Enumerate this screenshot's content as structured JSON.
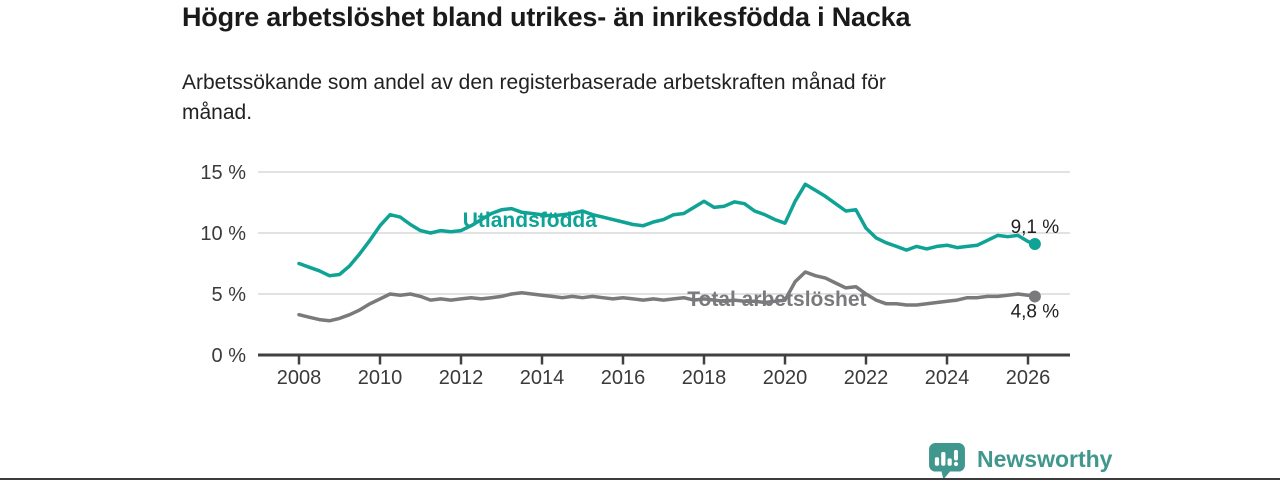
{
  "header": {
    "title": "Högre arbetslöshet bland utrikes- än inrikesfödda i Nacka",
    "subtitle_lines": [
      "Arbetssökande som andel av den registerbaserade arbetskraften månad för",
      "månad."
    ]
  },
  "footer": {
    "brand": "Newsworthy",
    "brand_color": "#3f978e",
    "icon": "newsworthy-logo"
  },
  "chart_data": {
    "type": "line",
    "title": "Högre arbetslöshet bland utrikes- än inrikesfödda i Nacka",
    "subtitle": "Arbetssökande som andel av den registerbaserade arbetskraften månad för månad.",
    "x_ticks": [
      2008,
      2010,
      2012,
      2014,
      2016,
      2018,
      2020,
      2022,
      2024,
      2026
    ],
    "x_tick_labels": [
      "2008",
      "2010",
      "2012",
      "2014",
      "2016",
      "2018",
      "2020",
      "2022",
      "2024",
      "2026"
    ],
    "y_ticks": [
      0,
      5,
      10,
      15
    ],
    "y_tick_labels": [
      "0 %",
      "5 %",
      "10 %",
      "15 %"
    ],
    "xlim": [
      2007,
      2027.1
    ],
    "ylim": [
      0,
      15
    ],
    "y_unit": "%",
    "grid": "horizontal",
    "grid_color": "#d9d9d9",
    "axis_color": "#404040",
    "axis_text_color": "#3a3a3a",
    "value_label_color": "#1f1f1f",
    "legend_position": "inline-labels",
    "series": [
      {
        "name": "Utlandsfödda",
        "color": "#0fa396",
        "end_label": "9,1 %",
        "label_at": [
          2013.7,
          11.05
        ],
        "points": [
          [
            2008,
            7.5
          ],
          [
            2008.25,
            7.2
          ],
          [
            2008.5,
            6.9
          ],
          [
            2008.75,
            6.5
          ],
          [
            2009,
            6.6
          ],
          [
            2009.25,
            7.3
          ],
          [
            2009.5,
            8.3
          ],
          [
            2009.75,
            9.4
          ],
          [
            2010,
            10.6
          ],
          [
            2010.25,
            11.5
          ],
          [
            2010.5,
            11.3
          ],
          [
            2010.75,
            10.7
          ],
          [
            2011,
            10.2
          ],
          [
            2011.25,
            10.0
          ],
          [
            2011.5,
            10.2
          ],
          [
            2011.75,
            10.1
          ],
          [
            2012,
            10.2
          ],
          [
            2012.25,
            10.6
          ],
          [
            2012.5,
            11.1
          ],
          [
            2012.75,
            11.6
          ],
          [
            2013,
            11.9
          ],
          [
            2013.25,
            12.0
          ],
          [
            2013.5,
            11.7
          ],
          [
            2013.75,
            11.6
          ],
          [
            2014,
            11.5
          ],
          [
            2014.25,
            11.4
          ],
          [
            2014.5,
            11.5
          ],
          [
            2014.75,
            11.6
          ],
          [
            2015,
            11.8
          ],
          [
            2015.25,
            11.5
          ],
          [
            2015.5,
            11.3
          ],
          [
            2015.75,
            11.1
          ],
          [
            2016,
            10.9
          ],
          [
            2016.25,
            10.7
          ],
          [
            2016.5,
            10.6
          ],
          [
            2016.75,
            10.9
          ],
          [
            2017,
            11.1
          ],
          [
            2017.25,
            11.5
          ],
          [
            2017.5,
            11.6
          ],
          [
            2017.75,
            12.1
          ],
          [
            2018,
            12.6
          ],
          [
            2018.25,
            12.1
          ],
          [
            2018.5,
            12.2
          ],
          [
            2018.75,
            12.55
          ],
          [
            2019,
            12.4
          ],
          [
            2019.25,
            11.8
          ],
          [
            2019.5,
            11.5
          ],
          [
            2019.75,
            11.1
          ],
          [
            2020,
            10.8
          ],
          [
            2020.25,
            12.6
          ],
          [
            2020.5,
            14.0
          ],
          [
            2020.75,
            13.5
          ],
          [
            2021,
            13.0
          ],
          [
            2021.25,
            12.4
          ],
          [
            2021.5,
            11.8
          ],
          [
            2021.75,
            11.9
          ],
          [
            2022,
            10.4
          ],
          [
            2022.25,
            9.6
          ],
          [
            2022.5,
            9.2
          ],
          [
            2022.75,
            8.9
          ],
          [
            2023,
            8.6
          ],
          [
            2023.25,
            8.9
          ],
          [
            2023.5,
            8.7
          ],
          [
            2023.75,
            8.9
          ],
          [
            2024,
            9.0
          ],
          [
            2024.25,
            8.8
          ],
          [
            2024.5,
            8.9
          ],
          [
            2024.75,
            9.0
          ],
          [
            2025,
            9.4
          ],
          [
            2025.25,
            9.8
          ],
          [
            2025.5,
            9.7
          ],
          [
            2025.75,
            9.8
          ],
          [
            2026,
            9.3
          ],
          [
            2026.17,
            9.1
          ]
        ]
      },
      {
        "name": "Total arbetslöshet",
        "color": "#7a7a7d",
        "end_label": "4,8 %",
        "label_at": [
          2019.8,
          4.6
        ],
        "points": [
          [
            2008,
            3.3
          ],
          [
            2008.25,
            3.1
          ],
          [
            2008.5,
            2.9
          ],
          [
            2008.75,
            2.8
          ],
          [
            2009,
            3.0
          ],
          [
            2009.25,
            3.3
          ],
          [
            2009.5,
            3.7
          ],
          [
            2009.75,
            4.2
          ],
          [
            2010,
            4.6
          ],
          [
            2010.25,
            5.0
          ],
          [
            2010.5,
            4.9
          ],
          [
            2010.75,
            5.0
          ],
          [
            2011,
            4.8
          ],
          [
            2011.25,
            4.5
          ],
          [
            2011.5,
            4.6
          ],
          [
            2011.75,
            4.5
          ],
          [
            2012,
            4.6
          ],
          [
            2012.25,
            4.7
          ],
          [
            2012.5,
            4.6
          ],
          [
            2012.75,
            4.7
          ],
          [
            2013,
            4.8
          ],
          [
            2013.25,
            5.0
          ],
          [
            2013.5,
            5.1
          ],
          [
            2013.75,
            5.0
          ],
          [
            2014,
            4.9
          ],
          [
            2014.25,
            4.8
          ],
          [
            2014.5,
            4.7
          ],
          [
            2014.75,
            4.8
          ],
          [
            2015,
            4.7
          ],
          [
            2015.25,
            4.8
          ],
          [
            2015.5,
            4.7
          ],
          [
            2015.75,
            4.6
          ],
          [
            2016,
            4.7
          ],
          [
            2016.25,
            4.6
          ],
          [
            2016.5,
            4.5
          ],
          [
            2016.75,
            4.6
          ],
          [
            2017,
            4.5
          ],
          [
            2017.25,
            4.6
          ],
          [
            2017.5,
            4.7
          ],
          [
            2017.75,
            4.5
          ],
          [
            2018,
            4.6
          ],
          [
            2018.25,
            4.5
          ],
          [
            2018.5,
            4.4
          ],
          [
            2018.75,
            4.5
          ],
          [
            2019,
            4.4
          ],
          [
            2019.25,
            4.4
          ],
          [
            2019.5,
            4.3
          ],
          [
            2019.75,
            4.4
          ],
          [
            2020,
            4.5
          ],
          [
            2020.25,
            6.0
          ],
          [
            2020.5,
            6.8
          ],
          [
            2020.75,
            6.5
          ],
          [
            2021,
            6.3
          ],
          [
            2021.25,
            5.9
          ],
          [
            2021.5,
            5.5
          ],
          [
            2021.75,
            5.6
          ],
          [
            2022,
            5.0
          ],
          [
            2022.25,
            4.5
          ],
          [
            2022.5,
            4.2
          ],
          [
            2022.75,
            4.2
          ],
          [
            2023,
            4.1
          ],
          [
            2023.25,
            4.1
          ],
          [
            2023.5,
            4.2
          ],
          [
            2023.75,
            4.3
          ],
          [
            2024,
            4.4
          ],
          [
            2024.25,
            4.5
          ],
          [
            2024.5,
            4.7
          ],
          [
            2024.75,
            4.7
          ],
          [
            2025,
            4.8
          ],
          [
            2025.25,
            4.8
          ],
          [
            2025.5,
            4.9
          ],
          [
            2025.75,
            5.0
          ],
          [
            2026,
            4.9
          ],
          [
            2026.17,
            4.8
          ]
        ]
      }
    ]
  }
}
